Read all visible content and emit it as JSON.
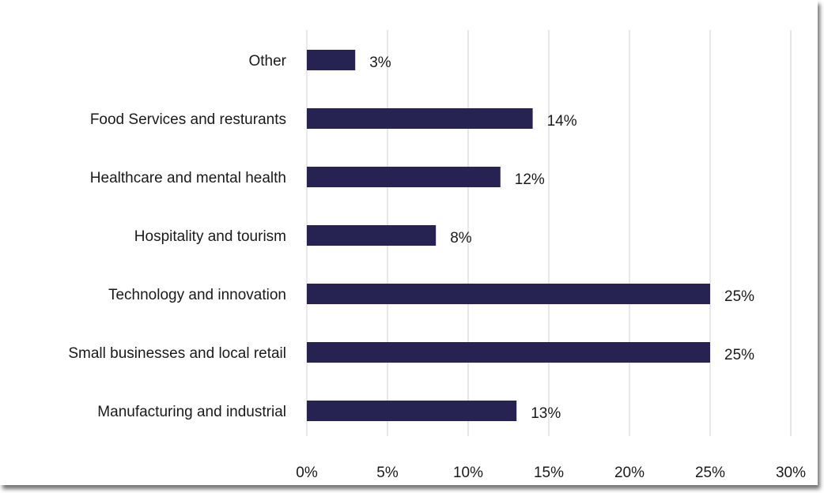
{
  "chart_data": {
    "type": "bar",
    "orientation": "horizontal",
    "title": "",
    "xlabel": "",
    "ylabel": "",
    "categories": [
      "Other",
      "Food Services and resturants",
      "Healthcare and mental health",
      "Hospitality and tourism",
      "Technology and innovation",
      "Small businesses and local retail",
      "Manufacturing and industrial"
    ],
    "values": [
      3,
      14,
      12,
      8,
      25,
      25,
      13
    ],
    "data_labels": [
      "3%",
      "14%",
      "12%",
      "8%",
      "25%",
      "25%",
      "13%"
    ],
    "xlim": [
      0,
      30
    ],
    "xticks": [
      0,
      5,
      10,
      15,
      20,
      25,
      30
    ],
    "xtick_labels": [
      "0%",
      "5%",
      "10%",
      "15%",
      "20%",
      "25%",
      "30%"
    ],
    "grid": "vertical",
    "legend": "none",
    "bar_color": "#262353",
    "grid_color": "#d9d9d9"
  }
}
